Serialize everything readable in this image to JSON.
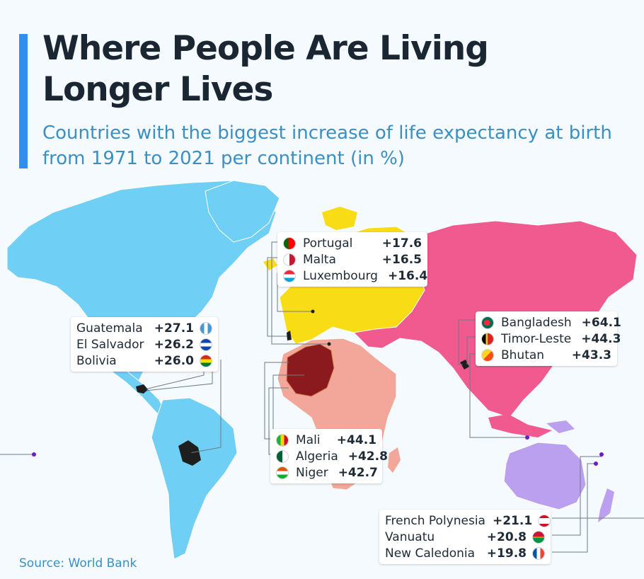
{
  "title": "Where People Are Living Longer Lives",
  "subtitle": "Countries with the biggest increase of life expectancy at birth from 1971 to 2021 per continent (in %)",
  "source": "Source: World Bank",
  "colors": {
    "accent": "#2f8ff0",
    "north_south_america": "#6fcff4",
    "europe": "#f8dc16",
    "africa": "#f3a79a",
    "asia": "#f05a8e",
    "oceania": "#bca0f0",
    "highlight_africa": "#8b1a1f",
    "highlight_americas": "#1e1e1e",
    "leader_dot": "#6a1cc8"
  },
  "groups": {
    "americas": [
      {
        "country": "Guatemala",
        "value": "+27.1",
        "flag": "guatemala-flag-icon"
      },
      {
        "country": "El Salvador",
        "value": "+26.2",
        "flag": "el-salvador-flag-icon"
      },
      {
        "country": "Bolivia",
        "value": "+26.0",
        "flag": "bolivia-flag-icon"
      }
    ],
    "europe": [
      {
        "country": "Portugal",
        "value": "+17.6",
        "flag": "portugal-flag-icon"
      },
      {
        "country": "Malta",
        "value": "+16.5",
        "flag": "malta-flag-icon"
      },
      {
        "country": "Luxembourg",
        "value": "+16.4",
        "flag": "luxembourg-flag-icon"
      }
    ],
    "asia": [
      {
        "country": "Bangladesh",
        "value": "+64.1",
        "flag": "bangladesh-flag-icon"
      },
      {
        "country": "Timor-Leste",
        "value": "+44.3",
        "flag": "timor-leste-flag-icon"
      },
      {
        "country": "Bhutan",
        "value": "+43.3",
        "flag": "bhutan-flag-icon"
      }
    ],
    "africa": [
      {
        "country": "Mali",
        "value": "+44.1",
        "flag": "mali-flag-icon"
      },
      {
        "country": "Algeria",
        "value": "+42.8",
        "flag": "algeria-flag-icon"
      },
      {
        "country": "Niger",
        "value": "+42.7",
        "flag": "niger-flag-icon"
      }
    ],
    "oceania": [
      {
        "country": "French Polynesia",
        "value": "+21.1",
        "flag": "french-polynesia-flag-icon"
      },
      {
        "country": "Vanuatu",
        "value": "+20.8",
        "flag": "vanuatu-flag-icon"
      },
      {
        "country": "New Caledonia",
        "value": "+19.8",
        "flag": "new-caledonia-flag-icon"
      }
    ]
  }
}
